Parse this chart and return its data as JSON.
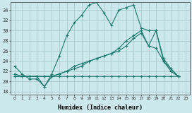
{
  "xlabel": "Humidex (Indice chaleur)",
  "bg_color": "#cce8ec",
  "grid_color": "#aacccc",
  "line_color": "#1a7a6e",
  "xlim": [
    -0.5,
    23.5
  ],
  "ylim": [
    17.5,
    35.5
  ],
  "xticks": [
    0,
    1,
    2,
    3,
    4,
    5,
    6,
    7,
    8,
    9,
    10,
    11,
    12,
    13,
    14,
    15,
    16,
    17,
    18,
    19,
    20,
    21,
    22,
    23
  ],
  "yticks": [
    18,
    20,
    22,
    24,
    26,
    28,
    30,
    32,
    34
  ],
  "lines": [
    {
      "x": [
        0,
        1,
        2,
        3,
        4,
        5,
        6,
        7,
        8,
        9,
        10,
        11,
        12,
        13,
        14,
        15,
        16,
        17,
        18,
        19,
        20,
        21,
        22
      ],
      "y": [
        23,
        21.5,
        20.5,
        20.5,
        19,
        21.5,
        25,
        29,
        31.5,
        33,
        35,
        35.5,
        33.5,
        31,
        34,
        34.5,
        35,
        30.5,
        30,
        30,
        24,
        22,
        21
      ]
    },
    {
      "x": [
        0,
        1,
        2,
        3,
        4,
        5,
        6,
        7,
        8,
        9,
        10,
        11,
        12,
        13,
        14,
        15,
        16,
        17,
        18,
        19,
        20,
        21,
        22
      ],
      "y": [
        21.5,
        21,
        21,
        21,
        21,
        21,
        21.5,
        22,
        22.5,
        23,
        24,
        24.5,
        25,
        25.5,
        26.5,
        28,
        29,
        30,
        27,
        30,
        24.5,
        22.5,
        21
      ]
    },
    {
      "x": [
        0,
        1,
        2,
        3,
        4,
        5,
        6,
        7,
        8,
        9,
        10,
        11,
        12,
        13,
        14,
        15,
        16,
        17,
        18,
        19,
        20,
        21,
        22
      ],
      "y": [
        21,
        21,
        21,
        21,
        21,
        21,
        21.5,
        22,
        23,
        23.5,
        24,
        24.5,
        25,
        25.5,
        26,
        27,
        28.5,
        29.5,
        27,
        26.5,
        24,
        22.5,
        21
      ]
    },
    {
      "x": [
        0,
        1,
        2,
        3,
        4,
        5,
        6,
        7,
        8,
        9,
        10,
        11,
        12,
        13,
        14,
        15,
        16,
        17,
        18,
        19,
        20,
        21,
        22
      ],
      "y": [
        21,
        21,
        21,
        21,
        19,
        21,
        21,
        21,
        21,
        21,
        21,
        21,
        21,
        21,
        21,
        21,
        21,
        21,
        21,
        21,
        21,
        21,
        21
      ]
    }
  ]
}
